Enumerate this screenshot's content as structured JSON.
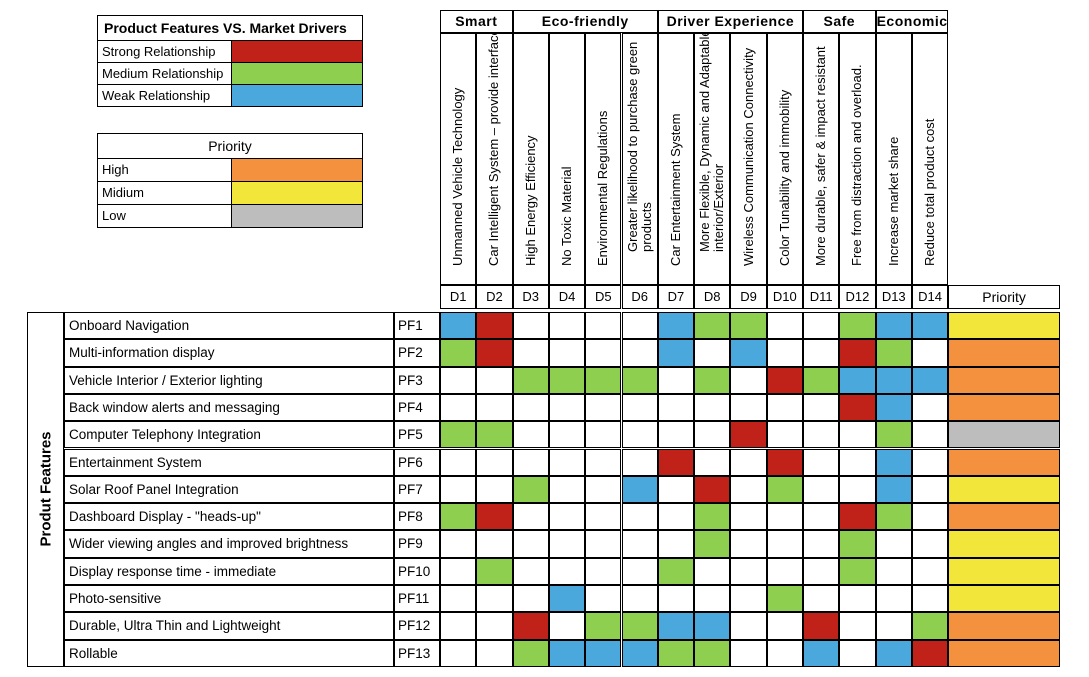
{
  "legend_relationship": {
    "title": "Product Features VS. Market Drivers",
    "items": [
      {
        "label": "Strong Relationship",
        "color": "#C0221A"
      },
      {
        "label": "Medium Relationship",
        "color": "#8FCF50"
      },
      {
        "label": "Weak Relationship",
        "color": "#4AA8DC"
      }
    ]
  },
  "legend_priority": {
    "title": "Priority",
    "items": [
      {
        "label": "High",
        "color": "#F4913E"
      },
      {
        "label": "Midium",
        "color": "#F2E63A"
      },
      {
        "label": "Low",
        "color": "#BDBDBD"
      }
    ]
  },
  "colors": {
    "S": "#C0221A",
    "M": "#8FCF50",
    "W": "#4AA8DC",
    "High": "#F4913E",
    "Midium": "#F2E63A",
    "Low": "#BDBDBD"
  },
  "groups": [
    {
      "label": "Smart",
      "span": 2
    },
    {
      "label": "Eco-friendly",
      "span": 4
    },
    {
      "label": "Driver Experience",
      "span": 4
    },
    {
      "label": "Safe",
      "span": 2
    },
    {
      "label": "Economic",
      "span": 2
    }
  ],
  "drivers": [
    {
      "code": "D1",
      "label": "Unmanned Vehicle Technology"
    },
    {
      "code": "D2",
      "label": "Car Intelligent System – provide interface"
    },
    {
      "code": "D3",
      "label": "High Energy Efficiency"
    },
    {
      "code": "D4",
      "label": "No Toxic Material"
    },
    {
      "code": "D5",
      "label": "Environmental Regulations"
    },
    {
      "code": "D6",
      "label": "Greater likelihood to purchase green products"
    },
    {
      "code": "D7",
      "label": "Car Entertainment System"
    },
    {
      "code": "D8",
      "label": "More Flexible, Dynamic and Adaptable interior/Exterior"
    },
    {
      "code": "D9",
      "label": "Wireless Communication Connectivity"
    },
    {
      "code": "D10",
      "label": "Color Tunability and immobility"
    },
    {
      "code": "D11",
      "label": "More durable, safer & impact resistant"
    },
    {
      "code": "D12",
      "label": "Free from distraction and overload."
    },
    {
      "code": "D13",
      "label": "Increase market share"
    },
    {
      "code": "D14",
      "label": "Reduce total product cost"
    }
  ],
  "priority_header": "Priority",
  "side_label": "Produt Features",
  "features": [
    {
      "name": "Onboard Navigation",
      "code": "PF1",
      "cells": [
        "W",
        "S",
        "",
        "",
        "",
        "",
        "W",
        "M",
        "M",
        "",
        "",
        "M",
        "W",
        "W"
      ],
      "priority": "Midium"
    },
    {
      "name": "Multi-information display",
      "code": "PF2",
      "cells": [
        "M",
        "S",
        "",
        "",
        "",
        "",
        "W",
        "",
        "W",
        "",
        "",
        "S",
        "M",
        ""
      ],
      "priority": "High"
    },
    {
      "name": "Vehicle Interior / Exterior lighting",
      "code": "PF3",
      "cells": [
        "",
        "",
        "M",
        "M",
        "M",
        "M",
        "",
        "M",
        "",
        "S",
        "M",
        "W",
        "W",
        "W"
      ],
      "priority": "High"
    },
    {
      "name": "Back window alerts and messaging",
      "code": "PF4",
      "cells": [
        "",
        "",
        "",
        "",
        "",
        "",
        "",
        "",
        "",
        "",
        "",
        "S",
        "W",
        ""
      ],
      "priority": "High"
    },
    {
      "name": "Computer Telephony Integration",
      "code": "PF5",
      "cells": [
        "M",
        "M",
        "",
        "",
        "",
        "",
        "",
        "",
        "S",
        "",
        "",
        "",
        "M",
        ""
      ],
      "priority": "Low"
    },
    {
      "name": "Entertainment System",
      "code": "PF6",
      "cells": [
        "",
        "",
        "",
        "",
        "",
        "",
        "S",
        "",
        "",
        "S",
        "",
        "",
        "W",
        ""
      ],
      "priority": "High"
    },
    {
      "name": "Solar Roof Panel Integration",
      "code": "PF7",
      "cells": [
        "",
        "",
        "M",
        "",
        "",
        "W",
        "",
        "S",
        "",
        "M",
        "",
        "",
        "W",
        ""
      ],
      "priority": "Midium"
    },
    {
      "name": "Dashboard Display - \"heads-up\"",
      "code": "PF8",
      "cells": [
        "M",
        "S",
        "",
        "",
        "",
        "",
        "",
        "M",
        "",
        "",
        "",
        "S",
        "M",
        ""
      ],
      "priority": "High"
    },
    {
      "name": "Wider viewing angles and improved brightness",
      "code": "PF9",
      "cells": [
        "",
        "",
        "",
        "",
        "",
        "",
        "",
        "M",
        "",
        "",
        "",
        "M",
        "",
        ""
      ],
      "priority": "Midium"
    },
    {
      "name": "Display response time - immediate",
      "code": "PF10",
      "cells": [
        "",
        "M",
        "",
        "",
        "",
        "",
        "M",
        "",
        "",
        "",
        "",
        "M",
        "",
        ""
      ],
      "priority": "Midium"
    },
    {
      "name": "Photo-sensitive",
      "code": "PF11",
      "cells": [
        "",
        "",
        "",
        "W",
        "",
        "",
        "",
        "",
        "",
        "M",
        "",
        "",
        "",
        ""
      ],
      "priority": "Midium"
    },
    {
      "name": "Durable, Ultra Thin and Lightweight",
      "code": "PF12",
      "cells": [
        "",
        "",
        "S",
        "",
        "M",
        "M",
        "W",
        "W",
        "",
        "",
        "S",
        "",
        "",
        "M"
      ],
      "priority": "High"
    },
    {
      "name": "Rollable",
      "code": "PF13",
      "cells": [
        "",
        "",
        "M",
        "W",
        "W",
        "W",
        "M",
        "M",
        "",
        "",
        "W",
        "",
        "W",
        "S"
      ],
      "priority": "High"
    }
  ]
}
